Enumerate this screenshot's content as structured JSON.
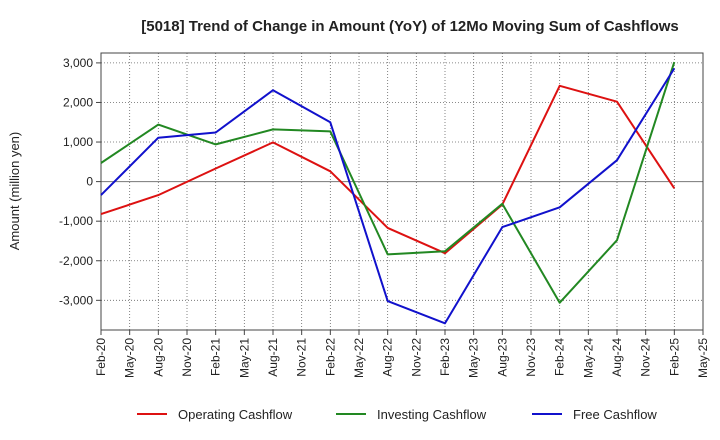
{
  "chart_data": {
    "type": "line",
    "title": "[5018]  Trend of Change in Amount (YoY) of 12Mo Moving Sum of Cashflows",
    "ylabel": "Amount (million yen)",
    "xlabel": "",
    "ylim": [
      -3750,
      3250
    ],
    "yticks": [
      3000,
      2000,
      1000,
      0,
      -1000,
      -2000,
      -3000
    ],
    "ytick_labels": [
      "3,000",
      "2,000",
      "1,000",
      "0",
      "-1,000",
      "-2,000",
      "-3,000"
    ],
    "categories": [
      "Feb-20",
      "May-20",
      "Aug-20",
      "Nov-20",
      "Feb-21",
      "May-21",
      "Aug-21",
      "Nov-21",
      "Feb-22",
      "May-22",
      "Aug-22",
      "Nov-22",
      "Feb-23",
      "May-23",
      "Aug-23",
      "Nov-23",
      "Feb-24",
      "May-24",
      "Aug-24",
      "Nov-24",
      "Feb-25",
      "May-25"
    ],
    "grid": true,
    "legend_position": "bottom",
    "series": [
      {
        "name": "Operating Cashflow",
        "color": "#dd1111",
        "x": [
          "Feb-20",
          "Aug-20",
          "Feb-21",
          "Aug-21",
          "Feb-22",
          "Aug-22",
          "Feb-23",
          "Aug-23",
          "Feb-24",
          "Aug-24",
          "Feb-25"
        ],
        "values": [
          -820,
          -340,
          330,
          990,
          260,
          -1170,
          -1810,
          -580,
          2420,
          2020,
          -170
        ]
      },
      {
        "name": "Investing Cashflow",
        "color": "#228822",
        "x": [
          "Feb-20",
          "Aug-20",
          "Feb-21",
          "Aug-21",
          "Feb-22",
          "Aug-22",
          "Feb-23",
          "Aug-23",
          "Feb-24",
          "Aug-24",
          "Feb-25"
        ],
        "values": [
          470,
          1440,
          940,
          1320,
          1270,
          -1840,
          -1760,
          -560,
          -3060,
          -1480,
          3020
        ]
      },
      {
        "name": "Free Cashflow",
        "color": "#1111cc",
        "x": [
          "Feb-20",
          "Aug-20",
          "Feb-21",
          "Aug-21",
          "Feb-22",
          "Aug-22",
          "Feb-23",
          "Aug-23",
          "Feb-24",
          "Aug-24",
          "Feb-25"
        ],
        "values": [
          -340,
          1110,
          1240,
          2310,
          1500,
          -3020,
          -3580,
          -1150,
          -650,
          540,
          2860
        ]
      }
    ]
  }
}
